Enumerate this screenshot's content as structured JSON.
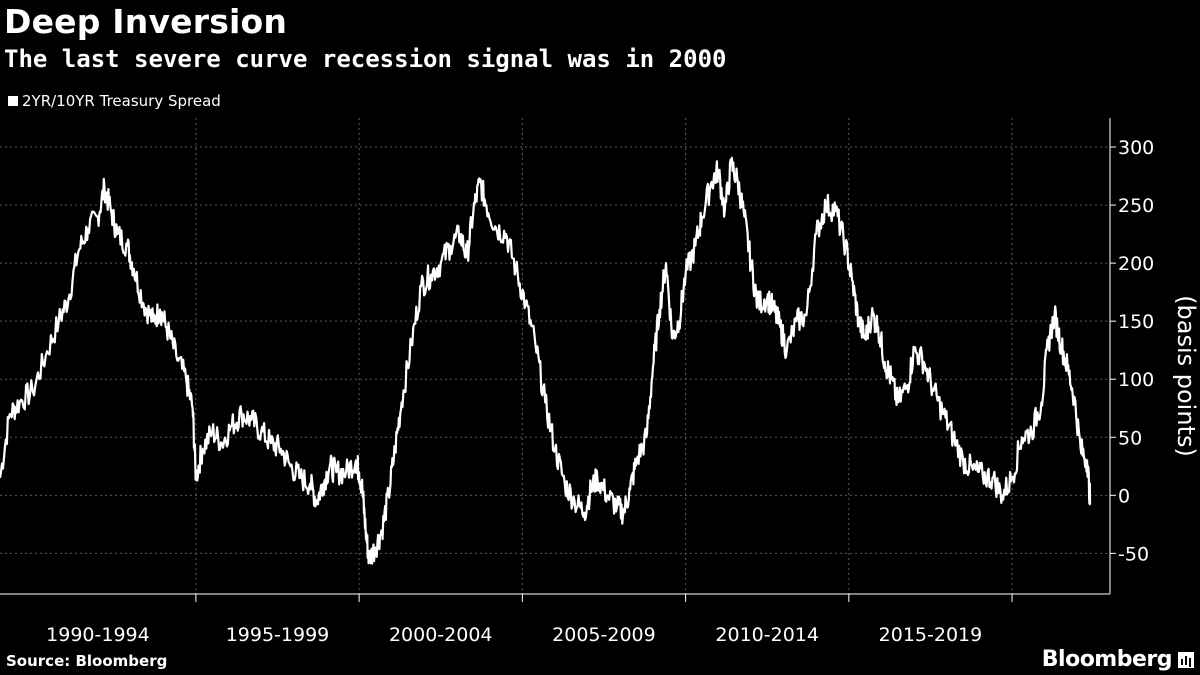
{
  "chart_data": {
    "type": "line",
    "title": "Deep Inversion",
    "subtitle": "The last severe curve recession signal was in 2000",
    "series": [
      {
        "name": "2YR/10YR Treasury Spread",
        "color": "#ffffff",
        "points": [
          [
            1989.0,
            15
          ],
          [
            1989.3,
            70
          ],
          [
            1989.6,
            80
          ],
          [
            1990.0,
            90
          ],
          [
            1990.4,
            120
          ],
          [
            1990.8,
            150
          ],
          [
            1991.1,
            170
          ],
          [
            1991.4,
            210
          ],
          [
            1991.7,
            230
          ],
          [
            1992.0,
            240
          ],
          [
            1992.2,
            265
          ],
          [
            1992.4,
            245
          ],
          [
            1992.6,
            225
          ],
          [
            1992.9,
            215
          ],
          [
            1993.1,
            195
          ],
          [
            1993.4,
            165
          ],
          [
            1993.7,
            150
          ],
          [
            1993.9,
            160
          ],
          [
            1994.1,
            145
          ],
          [
            1994.4,
            120
          ],
          [
            1994.7,
            100
          ],
          [
            1994.9,
            75
          ],
          [
            1995.0,
            15
          ],
          [
            1995.2,
            40
          ],
          [
            1995.5,
            55
          ],
          [
            1995.8,
            45
          ],
          [
            1996.1,
            60
          ],
          [
            1996.4,
            70
          ],
          [
            1996.7,
            65
          ],
          [
            1997.0,
            55
          ],
          [
            1997.3,
            45
          ],
          [
            1997.6,
            40
          ],
          [
            1997.9,
            25
          ],
          [
            1998.2,
            15
          ],
          [
            1998.5,
            10
          ],
          [
            1998.7,
            -5
          ],
          [
            1998.9,
            10
          ],
          [
            1999.1,
            25
          ],
          [
            1999.3,
            20
          ],
          [
            1999.6,
            20
          ],
          [
            1999.9,
            30
          ],
          [
            2000.0,
            20
          ],
          [
            2000.1,
            5
          ],
          [
            2000.2,
            -30
          ],
          [
            2000.3,
            -55
          ],
          [
            2000.5,
            -45
          ],
          [
            2000.7,
            -30
          ],
          [
            2000.9,
            0
          ],
          [
            2001.1,
            40
          ],
          [
            2001.3,
            80
          ],
          [
            2001.6,
            130
          ],
          [
            2001.9,
            180
          ],
          [
            2002.2,
            190
          ],
          [
            2002.5,
            200
          ],
          [
            2002.8,
            215
          ],
          [
            2003.1,
            225
          ],
          [
            2003.3,
            205
          ],
          [
            2003.5,
            245
          ],
          [
            2003.7,
            270
          ],
          [
            2003.9,
            250
          ],
          [
            2004.2,
            230
          ],
          [
            2004.5,
            225
          ],
          [
            2004.8,
            195
          ],
          [
            2005.1,
            165
          ],
          [
            2005.4,
            130
          ],
          [
            2005.7,
            80
          ],
          [
            2006.0,
            40
          ],
          [
            2006.3,
            10
          ],
          [
            2006.6,
            -5
          ],
          [
            2006.9,
            -15
          ],
          [
            2007.1,
            5
          ],
          [
            2007.3,
            15
          ],
          [
            2007.6,
            0
          ],
          [
            2007.9,
            -10
          ],
          [
            2008.1,
            -15
          ],
          [
            2008.3,
            5
          ],
          [
            2008.5,
            30
          ],
          [
            2008.8,
            50
          ],
          [
            2009.0,
            110
          ],
          [
            2009.2,
            160
          ],
          [
            2009.4,
            200
          ],
          [
            2009.6,
            135
          ],
          [
            2009.8,
            150
          ],
          [
            2010.0,
            190
          ],
          [
            2010.3,
            215
          ],
          [
            2010.5,
            240
          ],
          [
            2010.8,
            270
          ],
          [
            2011.0,
            280
          ],
          [
            2011.2,
            245
          ],
          [
            2011.4,
            285
          ],
          [
            2011.6,
            270
          ],
          [
            2011.8,
            240
          ],
          [
            2012.0,
            200
          ],
          [
            2012.2,
            165
          ],
          [
            2012.5,
            170
          ],
          [
            2012.7,
            160
          ],
          [
            2012.9,
            145
          ],
          [
            2013.1,
            125
          ],
          [
            2013.4,
            150
          ],
          [
            2013.7,
            155
          ],
          [
            2014.0,
            225
          ],
          [
            2014.3,
            250
          ],
          [
            2014.6,
            245
          ],
          [
            2014.9,
            215
          ],
          [
            2015.1,
            185
          ],
          [
            2015.3,
            150
          ],
          [
            2015.5,
            135
          ],
          [
            2015.7,
            155
          ],
          [
            2015.9,
            145
          ],
          [
            2016.1,
            115
          ],
          [
            2016.3,
            100
          ],
          [
            2016.5,
            80
          ],
          [
            2016.8,
            95
          ],
          [
            2017.0,
            125
          ],
          [
            2017.3,
            115
          ],
          [
            2017.6,
            90
          ],
          [
            2017.9,
            70
          ],
          [
            2018.2,
            50
          ],
          [
            2018.5,
            30
          ],
          [
            2018.8,
            22
          ],
          [
            2019.1,
            17
          ],
          [
            2019.4,
            15
          ],
          [
            2019.7,
            0
          ],
          [
            2020.0,
            15
          ],
          [
            2020.3,
            50
          ],
          [
            2020.6,
            55
          ],
          [
            2020.9,
            80
          ],
          [
            2021.1,
            130
          ],
          [
            2021.3,
            155
          ],
          [
            2021.5,
            130
          ],
          [
            2021.7,
            110
          ],
          [
            2021.9,
            85
          ],
          [
            2022.1,
            40
          ],
          [
            2022.3,
            30
          ],
          [
            2022.4,
            -8
          ]
        ]
      }
    ],
    "x_categories": [
      "1990-1994",
      "1995-1999",
      "2000-2004",
      "2005-2009",
      "2010-2014",
      "2015-2019"
    ],
    "x_category_starts": [
      1989.0,
      1995.0,
      2000.0,
      2005.0,
      2010.0,
      2015.0,
      2020.0
    ],
    "xlim": [
      1989.0,
      2023.0
    ],
    "ylim": [
      -85,
      325
    ],
    "y_ticks": [
      -50,
      0,
      50,
      100,
      150,
      200,
      250,
      300
    ],
    "y_tick_labels": [
      "-50",
      "0",
      "50",
      "100",
      "150",
      "200",
      "250",
      "300"
    ],
    "ylabel": "(basis points)",
    "xlabel": "",
    "grid": true,
    "legend_position": "top-left"
  },
  "legend_label": "2YR/10YR Treasury Spread",
  "source_text": "Source: Bloomberg",
  "brand_text": "Bloomberg",
  "colors": {
    "background": "#000000",
    "line": "#ffffff",
    "grid": "#5a5a5a",
    "text": "#ffffff"
  }
}
